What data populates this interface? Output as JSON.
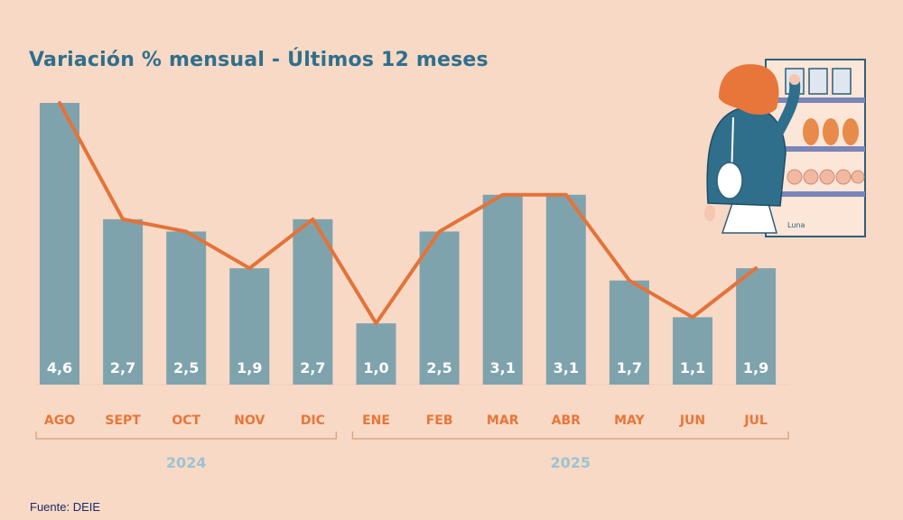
{
  "title": "Variación % mensual - Últimos 12 meses",
  "source": "Fuente: DEIE",
  "colors": {
    "bars": "#7fa3ad",
    "line": "#e3733a",
    "months": "#e8763a",
    "years": "#9cc3d3",
    "title": "#2f6f8c",
    "background": "#f8d9c5"
  },
  "illustration": "woman-shopping-at-supermarket-shelf",
  "chart_data": {
    "type": "bar",
    "categories": [
      "AGO",
      "SEPT",
      "OCT",
      "NOV",
      "DIC",
      "ENE",
      "FEB",
      "MAR",
      "ABR",
      "MAY",
      "JUN",
      "JUL"
    ],
    "values": [
      4.6,
      2.7,
      2.5,
      1.9,
      2.7,
      1.0,
      2.5,
      3.1,
      3.1,
      1.7,
      1.1,
      1.9
    ],
    "value_labels": [
      "4,6",
      "2,7",
      "2,5",
      "1,9",
      "2,7",
      "1,0",
      "2,5",
      "3,1",
      "3,1",
      "1,7",
      "1,1",
      "1,9"
    ],
    "line_overlay": true,
    "groups": [
      {
        "label": "2024",
        "from": 0,
        "to": 4
      },
      {
        "label": "2025",
        "from": 5,
        "to": 11
      }
    ],
    "ylim": [
      0,
      4.6
    ],
    "grid": false
  }
}
